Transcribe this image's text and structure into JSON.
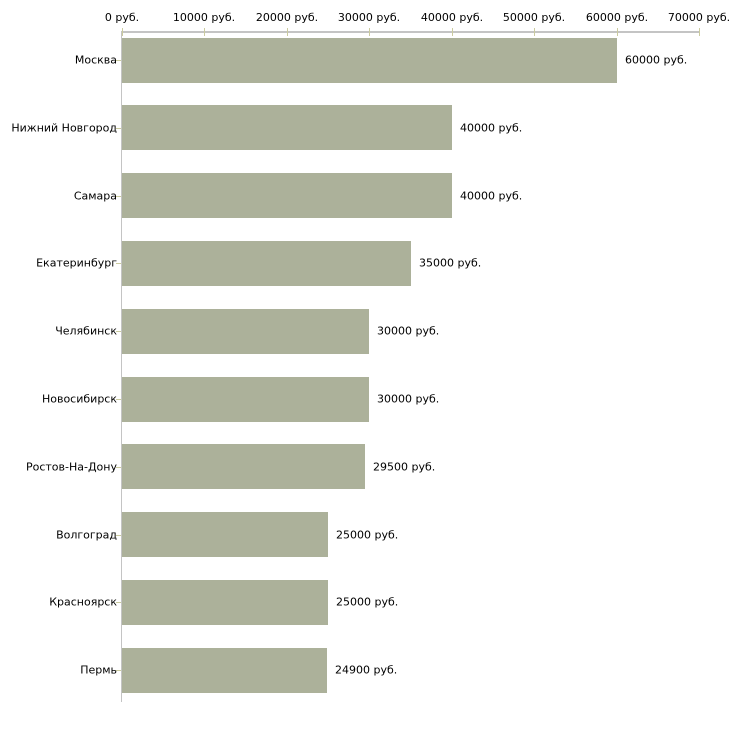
{
  "chart_data": {
    "type": "bar",
    "orientation": "horizontal",
    "title": "",
    "xlabel": "",
    "ylabel": "",
    "categories": [
      "Москва",
      "Нижний Новгород",
      "Самара",
      "Екатеринбург",
      "Челябинск",
      "Новосибирск",
      "Ростов-На-Дону",
      "Волгоград",
      "Красноярск",
      "Пермь"
    ],
    "values": [
      60000,
      40000,
      40000,
      35000,
      30000,
      30000,
      29500,
      25000,
      25000,
      24900
    ],
    "value_labels": [
      "60000 руб.",
      "40000 руб.",
      "40000 руб.",
      "35000 руб.",
      "30000 руб.",
      "30000 руб.",
      "29500 руб.",
      "25000 руб.",
      "25000 руб.",
      "24900 руб."
    ],
    "x_tick_labels": [
      "0 руб.",
      "10000 руб.",
      "20000 руб.",
      "30000 руб.",
      "40000 руб.",
      "50000 руб.",
      "60000 руб.",
      "70000 руб."
    ],
    "x_tick_values": [
      0,
      10000,
      20000,
      30000,
      40000,
      50000,
      60000,
      70000
    ],
    "xlim": [
      0,
      70000
    ],
    "grid": false,
    "legend": null,
    "axis_position": "top",
    "colors": {
      "bar": "#acb19a",
      "axis": "#c4c4c4",
      "tick": "#cbcb9f",
      "text": "#000000",
      "background": "#ffffff"
    }
  }
}
